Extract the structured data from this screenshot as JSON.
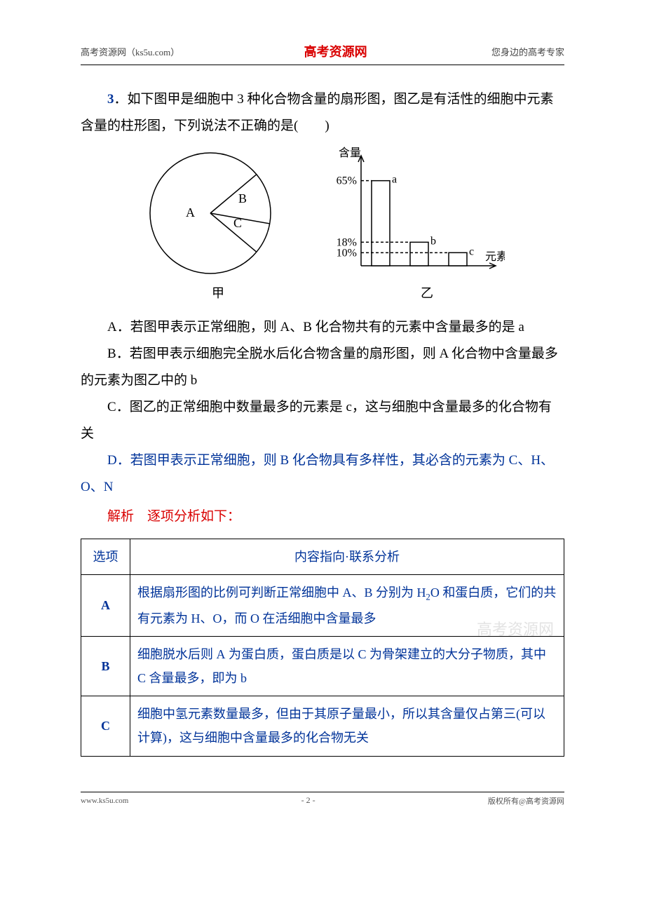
{
  "header": {
    "left": "高考资源网（ks5u.com）",
    "center": "高考资源网",
    "right": "您身边的高考专家"
  },
  "question": {
    "number": "3",
    "intro": "．如下图甲是细胞中 3 种化合物含量的扇形图，图乙是有活性的细胞中元素含量的柱形图，下列说法不正确的是(　　)"
  },
  "pie_chart": {
    "type": "pie",
    "radius": 86,
    "slices": [
      {
        "label": "A",
        "start_deg": 40,
        "end_deg": 320
      },
      {
        "label": "B",
        "start_deg": -10,
        "end_deg": 40
      },
      {
        "label": "C",
        "start_deg": 320,
        "end_deg": 350
      }
    ],
    "stroke": "#000000",
    "fill": "#ffffff",
    "caption": "甲"
  },
  "bar_chart": {
    "type": "bar",
    "y_label": "含量",
    "x_label": "元素",
    "bars": [
      {
        "label": "a",
        "value": 65
      },
      {
        "label": "b",
        "value": 18
      },
      {
        "label": "c",
        "value": 10
      }
    ],
    "y_ticks": [
      "65%",
      "18%",
      "10%"
    ],
    "y_tick_values": [
      65,
      18,
      10
    ],
    "ylim": [
      0,
      75
    ],
    "bar_color": "#ffffff",
    "stroke": "#000000",
    "caption": "乙"
  },
  "options": {
    "A": "．若图甲表示正常细胞，则 A、B 化合物共有的元素中含量最多的是 a",
    "B": "．若图甲表示细胞完全脱水后化合物含量的扇形图，则 A 化合物中含量最多的元素为图乙中的 b",
    "C": "．图乙的正常细胞中数量最多的元素是 c，这与细胞中含量最多的化合物有关",
    "D": "．若图甲表示正常细胞，则 B 化合物具有多样性，其必含的元素为 C、H、O、N"
  },
  "analysis": {
    "label": "解析　逐项分析如下：",
    "table": {
      "headers": [
        "选项",
        "内容指向·联系分析"
      ],
      "rows": [
        {
          "opt": "A",
          "text": "根据扇形图的比例可判断正常细胞中 A、B 分别为 H₂O 和蛋白质，它们的共有元素为 H、O，而 O 在活细胞中含量最多"
        },
        {
          "opt": "B",
          "text": "细胞脱水后则 A 为蛋白质，蛋白质是以 C 为骨架建立的大分子物质，其中 C 含量最多，即为 b"
        },
        {
          "opt": "C",
          "text": "细胞中氢元素数量最多，但由于其原子量最小，所以其含量仅占第三(可以计算)，这与细胞中含量最多的化合物无关"
        }
      ]
    }
  },
  "watermark": "高考资源网",
  "footer": {
    "left": "www.ks5u.com",
    "center": "- 2 -",
    "right": "版权所有@高考资源网"
  }
}
